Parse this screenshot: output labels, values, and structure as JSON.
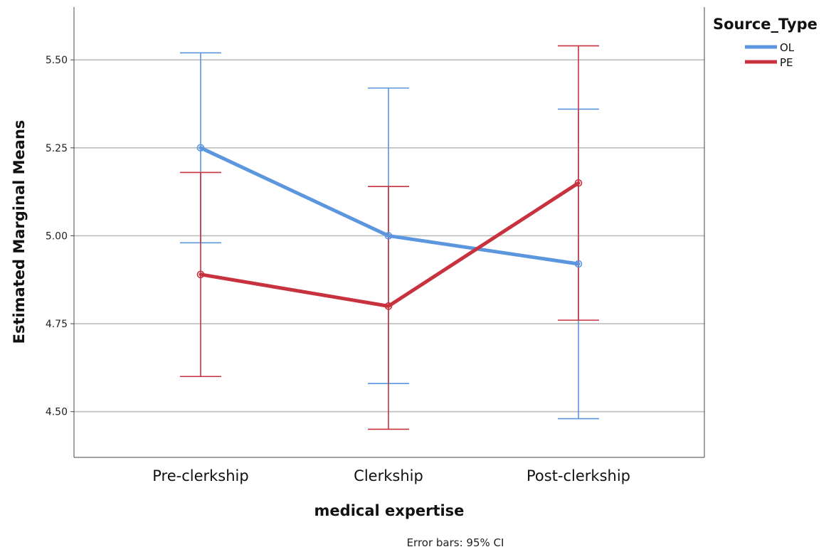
{
  "chart_data": {
    "type": "line",
    "categories": [
      "Pre-clerkship",
      "Clerkship",
      "Post-clerkship"
    ],
    "xlabel": "medical expertise",
    "ylabel": "Estimated Marginal Means",
    "yticks": [
      "4.50",
      "4.75",
      "5.00",
      "5.25",
      "5.50"
    ],
    "ylim": [
      4.37,
      5.65
    ],
    "grid": "horizontal",
    "legend": {
      "title": "Source_Type",
      "position": "top-right"
    },
    "note": "Error bars: 95% CI",
    "series": [
      {
        "name": "OL",
        "color": "#5b96de",
        "values": [
          5.25,
          5.0,
          4.92
        ],
        "ci_low": [
          4.98,
          4.58,
          4.48
        ],
        "ci_high": [
          5.52,
          5.42,
          5.36
        ]
      },
      {
        "name": "PE",
        "color": "#c8323e",
        "values": [
          4.89,
          4.8,
          5.15
        ],
        "ci_low": [
          4.6,
          4.45,
          4.76
        ],
        "ci_high": [
          5.18,
          5.14,
          5.54
        ]
      }
    ]
  }
}
